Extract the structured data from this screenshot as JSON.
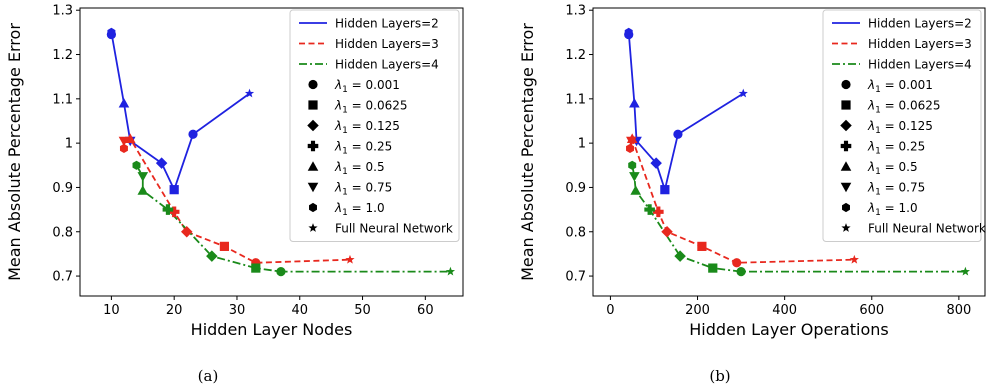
{
  "chart_data": [
    {
      "type": "line",
      "caption": "(a)",
      "xlabel": "Hidden Layer Nodes",
      "ylabel": "Mean Absolute Percentage Error",
      "xlim": [
        5,
        66
      ],
      "ylim": [
        0.655,
        1.305
      ],
      "xticks": [
        10,
        20,
        30,
        40,
        50,
        60
      ],
      "yticks": [
        0.7,
        0.8,
        0.9,
        1.0,
        1.1,
        1.2,
        1.3
      ],
      "grid": false,
      "legend_position": "top-right",
      "series": [
        {
          "name": "Hidden Layers=2",
          "color": "#1f22e0",
          "dash": "solid",
          "points": [
            {
              "x": 10,
              "y": 1.245,
              "marker": "circle"
            },
            {
              "x": 10,
              "y": 1.25,
              "marker": "hexagon"
            },
            {
              "x": 12,
              "y": 1.09,
              "marker": "triangle-up"
            },
            {
              "x": 13,
              "y": 1.005,
              "marker": "triangle-down"
            },
            {
              "x": 18,
              "y": 0.955,
              "marker": "diamond"
            },
            {
              "x": 20,
              "y": 0.895,
              "marker": "square"
            },
            {
              "x": 23,
              "y": 1.02,
              "marker": "circle"
            },
            {
              "x": 32,
              "y": 1.112,
              "marker": "star"
            }
          ]
        },
        {
          "name": "Hidden Layers=3",
          "color": "#e8281e",
          "dash": "dashed",
          "points": [
            {
              "x": 12,
              "y": 0.988,
              "marker": "hexagon"
            },
            {
              "x": 12,
              "y": 1.005,
              "marker": "triangle-down"
            },
            {
              "x": 13,
              "y": 1.01,
              "marker": "triangle-up"
            },
            {
              "x": 20,
              "y": 0.845,
              "marker": "plus"
            },
            {
              "x": 22,
              "y": 0.8,
              "marker": "diamond"
            },
            {
              "x": 28,
              "y": 0.767,
              "marker": "square"
            },
            {
              "x": 33,
              "y": 0.73,
              "marker": "circle"
            },
            {
              "x": 48,
              "y": 0.737,
              "marker": "star"
            }
          ]
        },
        {
          "name": "Hidden Layers=4",
          "color": "#1a8a1a",
          "dash": "dashdot",
          "points": [
            {
              "x": 14,
              "y": 0.95,
              "marker": "hexagon"
            },
            {
              "x": 15,
              "y": 0.925,
              "marker": "triangle-down"
            },
            {
              "x": 15,
              "y": 0.893,
              "marker": "triangle-up"
            },
            {
              "x": 19,
              "y": 0.85,
              "marker": "plus"
            },
            {
              "x": 26,
              "y": 0.745,
              "marker": "diamond"
            },
            {
              "x": 33,
              "y": 0.718,
              "marker": "square"
            },
            {
              "x": 37,
              "y": 0.71,
              "marker": "circle"
            },
            {
              "x": 64,
              "y": 0.71,
              "marker": "star"
            }
          ]
        }
      ]
    },
    {
      "type": "line",
      "caption": "(b)",
      "xlabel": "Hidden Layer Operations",
      "ylabel": "Mean Absolute Percentage Error",
      "xlim": [
        -40,
        860
      ],
      "ylim": [
        0.655,
        1.305
      ],
      "xticks": [
        0,
        200,
        400,
        600,
        800
      ],
      "yticks": [
        0.7,
        0.8,
        0.9,
        1.0,
        1.1,
        1.2,
        1.3
      ],
      "grid": false,
      "legend_position": "top-right",
      "series": [
        {
          "name": "Hidden Layers=2",
          "color": "#1f22e0",
          "dash": "solid",
          "points": [
            {
              "x": 42,
              "y": 1.245,
              "marker": "circle"
            },
            {
              "x": 42,
              "y": 1.25,
              "marker": "hexagon"
            },
            {
              "x": 55,
              "y": 1.09,
              "marker": "triangle-up"
            },
            {
              "x": 60,
              "y": 1.005,
              "marker": "triangle-down"
            },
            {
              "x": 105,
              "y": 0.955,
              "marker": "diamond"
            },
            {
              "x": 125,
              "y": 0.895,
              "marker": "square"
            },
            {
              "x": 155,
              "y": 1.02,
              "marker": "circle"
            },
            {
              "x": 305,
              "y": 1.112,
              "marker": "star"
            }
          ]
        },
        {
          "name": "Hidden Layers=3",
          "color": "#e8281e",
          "dash": "dashed",
          "points": [
            {
              "x": 45,
              "y": 0.988,
              "marker": "hexagon"
            },
            {
              "x": 48,
              "y": 1.005,
              "marker": "triangle-down"
            },
            {
              "x": 50,
              "y": 1.01,
              "marker": "triangle-up"
            },
            {
              "x": 110,
              "y": 0.845,
              "marker": "plus"
            },
            {
              "x": 130,
              "y": 0.8,
              "marker": "diamond"
            },
            {
              "x": 210,
              "y": 0.767,
              "marker": "square"
            },
            {
              "x": 290,
              "y": 0.73,
              "marker": "circle"
            },
            {
              "x": 560,
              "y": 0.737,
              "marker": "star"
            }
          ]
        },
        {
          "name": "Hidden Layers=4",
          "color": "#1a8a1a",
          "dash": "dashdot",
          "points": [
            {
              "x": 50,
              "y": 0.95,
              "marker": "hexagon"
            },
            {
              "x": 55,
              "y": 0.925,
              "marker": "triangle-down"
            },
            {
              "x": 58,
              "y": 0.893,
              "marker": "triangle-up"
            },
            {
              "x": 90,
              "y": 0.85,
              "marker": "plus"
            },
            {
              "x": 160,
              "y": 0.745,
              "marker": "diamond"
            },
            {
              "x": 235,
              "y": 0.718,
              "marker": "square"
            },
            {
              "x": 300,
              "y": 0.71,
              "marker": "circle"
            },
            {
              "x": 815,
              "y": 0.71,
              "marker": "star"
            }
          ]
        }
      ]
    }
  ],
  "legend": {
    "line_entries": [
      {
        "label": "Hidden Layers=2",
        "color": "#1f22e0",
        "dash": "solid"
      },
      {
        "label": "Hidden Layers=3",
        "color": "#e8281e",
        "dash": "dashed"
      },
      {
        "label": "Hidden Layers=4",
        "color": "#1a8a1a",
        "dash": "dashdot"
      }
    ],
    "marker_entries": [
      {
        "symbol": "λ",
        "sub": "1",
        "value": " = 0.001",
        "marker": "circle"
      },
      {
        "symbol": "λ",
        "sub": "1",
        "value": " = 0.0625",
        "marker": "square"
      },
      {
        "symbol": "λ",
        "sub": "1",
        "value": " = 0.125",
        "marker": "diamond"
      },
      {
        "symbol": "λ",
        "sub": "1",
        "value": " = 0.25",
        "marker": "plus"
      },
      {
        "symbol": "λ",
        "sub": "1",
        "value": " = 0.5",
        "marker": "triangle-up"
      },
      {
        "symbol": "λ",
        "sub": "1",
        "value": " = 0.75",
        "marker": "triangle-down"
      },
      {
        "symbol": "λ",
        "sub": "1",
        "value": " = 1.0",
        "marker": "hexagon"
      },
      {
        "label": "Full Neural Network",
        "marker": "star"
      }
    ]
  }
}
